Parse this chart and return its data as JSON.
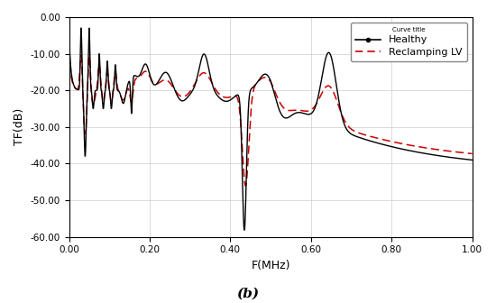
{
  "title": "(b)",
  "xlabel": "F(MHz)",
  "ylabel": "TF(dB)",
  "xlim": [
    0.0,
    1.0
  ],
  "ylim": [
    -60,
    0
  ],
  "yticks": [
    0,
    -10,
    -20,
    -30,
    -40,
    -50,
    -60
  ],
  "xticks": [
    0.0,
    0.2,
    0.4,
    0.6,
    0.8,
    1.0
  ],
  "legend_title": "Curve title",
  "legend_entries": [
    "Healthy",
    "Reclamping LV"
  ],
  "healthy_color": "#000000",
  "reclamping_color": "#cc0000",
  "background_color": "#ffffff",
  "grid_color": "#cccccc"
}
